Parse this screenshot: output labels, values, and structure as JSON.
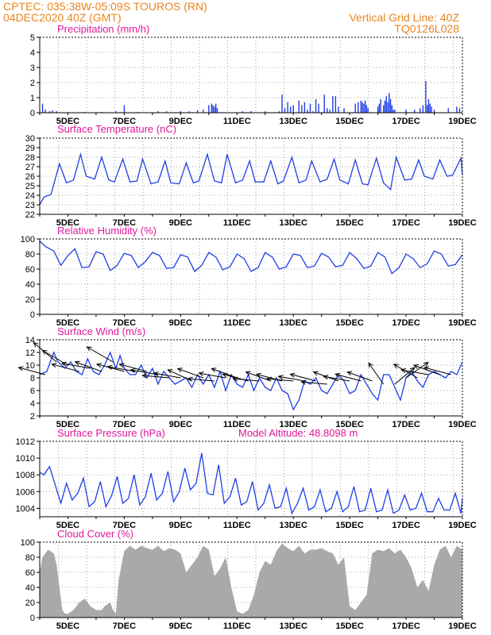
{
  "header": {
    "line1": "CPTEC:   035:38W-05:09S   TOUROS (RN)",
    "line2": "04DEC2020 40Z (GMT)",
    "right1": "Vertical Grid Line: 40Z",
    "right2": "TQ0126L028"
  },
  "colors": {
    "header": "#e8851f",
    "titles": "#e0189a",
    "line": "#1f3fe6",
    "cloud": "#a9a9a9",
    "wind_arrow": "#000000"
  },
  "x_days": [
    "5DEC",
    "7DEC",
    "9DEC",
    "11DEC",
    "13DEC",
    "15DEC",
    "17DEC",
    "19DEC"
  ],
  "chart_data": [
    {
      "type": "bar",
      "title": "Precipitation (mm/h)",
      "ylim": [
        0,
        5
      ],
      "yticks": [
        "0",
        "1",
        "2",
        "3",
        "4",
        "5"
      ],
      "x_range_days": [
        4.0,
        19.0
      ],
      "x": [
        4.1,
        4.2,
        4.35,
        4.45,
        4.6,
        5.6,
        6.2,
        6.7,
        7.0,
        7.5,
        8.2,
        8.5,
        9.0,
        9.3,
        9.6,
        9.8,
        10.0,
        10.1,
        10.15,
        10.2,
        10.25,
        10.3,
        11.2,
        11.5,
        12.0,
        12.5,
        12.6,
        12.7,
        12.8,
        12.9,
        13.0,
        13.2,
        13.3,
        13.4,
        13.5,
        13.6,
        13.7,
        13.8,
        13.9,
        14.1,
        14.2,
        14.3,
        14.4,
        14.5,
        14.6,
        14.8,
        15.2,
        15.3,
        15.4,
        15.45,
        15.5,
        15.55,
        15.6,
        15.65,
        16.0,
        16.05,
        16.1,
        16.2,
        16.25,
        16.3,
        16.35,
        16.4,
        16.45,
        16.5,
        16.55,
        16.6,
        17.0,
        17.3,
        17.5,
        17.6,
        17.7,
        17.75,
        17.8,
        17.85,
        17.9,
        18.0,
        18.5,
        18.8,
        18.9
      ],
      "values": [
        0.6,
        0.2,
        0.1,
        0.15,
        0.1,
        0.05,
        0.05,
        0.1,
        0.5,
        0.05,
        0.1,
        0.1,
        0.1,
        0.1,
        0.15,
        0.2,
        0.5,
        0.6,
        0.5,
        0.4,
        0.6,
        0.3,
        0.1,
        0.1,
        0.1,
        0.1,
        1.2,
        0.3,
        0.7,
        0.4,
        0.5,
        0.8,
        0.5,
        0.7,
        0.2,
        0.6,
        0.1,
        0.9,
        0.6,
        1.2,
        0.3,
        0.2,
        1.1,
        1.1,
        0.4,
        0.3,
        0.6,
        0.7,
        0.8,
        0.7,
        0.6,
        0.8,
        0.5,
        0.3,
        0.4,
        0.6,
        0.9,
        0.5,
        0.8,
        1.1,
        0.7,
        1.3,
        0.9,
        0.5,
        0.2,
        0.2,
        0.2,
        0.2,
        0.3,
        0.5,
        2.1,
        0.5,
        0.9,
        0.6,
        0.4,
        0.2,
        0.3,
        0.4,
        0.3
      ]
    },
    {
      "type": "line",
      "title": "Surface Temperature (nC)",
      "ylim": [
        22,
        30
      ],
      "yticks": [
        "22",
        "23",
        "24",
        "25",
        "26",
        "27",
        "28",
        "29",
        "30"
      ],
      "x_range_days": [
        4.0,
        19.0
      ],
      "x": [
        4.0,
        4.15,
        4.4,
        4.7,
        4.95,
        5.2,
        5.45,
        5.65,
        5.95,
        6.2,
        6.45,
        6.65,
        6.95,
        7.2,
        7.45,
        7.65,
        7.95,
        8.2,
        8.45,
        8.65,
        8.95,
        9.2,
        9.45,
        9.65,
        9.95,
        10.2,
        10.45,
        10.65,
        10.95,
        11.2,
        11.45,
        11.65,
        11.95,
        12.2,
        12.45,
        12.65,
        12.95,
        13.2,
        13.45,
        13.65,
        13.95,
        14.2,
        14.45,
        14.65,
        14.95,
        15.2,
        15.45,
        15.65,
        15.95,
        16.2,
        16.45,
        16.65,
        16.95,
        17.2,
        17.45,
        17.65,
        17.95,
        18.2,
        18.45,
        18.65,
        18.95,
        19.0
      ],
      "values": [
        23.0,
        23.8,
        24.1,
        27.3,
        25.3,
        25.6,
        28.3,
        26.0,
        25.7,
        28.0,
        25.6,
        25.4,
        27.8,
        25.4,
        25.5,
        27.8,
        25.2,
        25.4,
        27.6,
        25.3,
        25.2,
        27.4,
        25.3,
        25.5,
        28.3,
        25.5,
        25.3,
        28.3,
        25.3,
        25.6,
        27.6,
        25.4,
        25.4,
        27.6,
        25.2,
        25.5,
        28.0,
        25.3,
        25.6,
        27.6,
        25.4,
        25.7,
        27.8,
        25.6,
        25.2,
        27.7,
        25.2,
        25.1,
        27.9,
        25.3,
        24.6,
        28.0,
        25.6,
        25.7,
        27.7,
        26.0,
        25.7,
        27.7,
        26.0,
        26.1,
        27.9,
        26.1
      ]
    },
    {
      "type": "line",
      "title": "Relative Humidity (%)",
      "ylim": [
        0,
        100
      ],
      "yticks": [
        "0",
        "20",
        "40",
        "60",
        "80",
        "100"
      ],
      "x_range_days": [
        4.0,
        19.0
      ],
      "x": [
        4.0,
        4.2,
        4.5,
        4.75,
        5.0,
        5.25,
        5.5,
        5.75,
        6.0,
        6.25,
        6.5,
        6.75,
        7.0,
        7.25,
        7.5,
        7.75,
        8.0,
        8.25,
        8.5,
        8.75,
        9.0,
        9.25,
        9.5,
        9.75,
        10.0,
        10.25,
        10.5,
        10.75,
        11.0,
        11.25,
        11.5,
        11.75,
        12.0,
        12.25,
        12.5,
        12.75,
        13.0,
        13.25,
        13.5,
        13.75,
        14.0,
        14.25,
        14.5,
        14.75,
        15.0,
        15.25,
        15.5,
        15.75,
        16.0,
        16.25,
        16.5,
        16.75,
        17.0,
        17.25,
        17.5,
        17.75,
        18.0,
        18.25,
        18.5,
        18.75,
        19.0
      ],
      "values": [
        97,
        90,
        84,
        65,
        78,
        87,
        62,
        63,
        83,
        80,
        58,
        65,
        81,
        78,
        62,
        70,
        82,
        78,
        61,
        62,
        79,
        76,
        57,
        65,
        82,
        76,
        59,
        63,
        80,
        74,
        57,
        62,
        82,
        76,
        60,
        63,
        80,
        78,
        62,
        64,
        81,
        76,
        63,
        65,
        82,
        74,
        61,
        64,
        82,
        76,
        54,
        62,
        80,
        74,
        62,
        67,
        84,
        80,
        64,
        66,
        79
      ]
    },
    {
      "type": "line",
      "title": "Surface Wind (m/s)",
      "ylim": [
        2,
        14
      ],
      "yticks": [
        "2",
        "4",
        "6",
        "8",
        "10",
        "12",
        "14"
      ],
      "x_range_days": [
        4.0,
        19.0
      ],
      "x": [
        4.0,
        4.25,
        4.5,
        4.65,
        4.9,
        5.1,
        5.3,
        5.5,
        5.7,
        5.9,
        6.1,
        6.3,
        6.5,
        6.7,
        6.85,
        7.0,
        7.2,
        7.4,
        7.6,
        7.8,
        8.0,
        8.2,
        8.4,
        8.6,
        8.8,
        9.0,
        9.2,
        9.4,
        9.6,
        9.8,
        10.0,
        10.2,
        10.4,
        10.6,
        10.8,
        11.0,
        11.2,
        11.4,
        11.6,
        11.8,
        12.0,
        12.2,
        12.4,
        12.6,
        12.8,
        13.0,
        13.2,
        13.4,
        13.6,
        13.8,
        14.0,
        14.2,
        14.4,
        14.6,
        14.8,
        15.0,
        15.2,
        15.4,
        15.6,
        15.8,
        16.0,
        16.2,
        16.4,
        16.6,
        16.8,
        17.0,
        17.2,
        17.4,
        17.6,
        17.8,
        18.0,
        18.2,
        18.4,
        18.6,
        18.8,
        19.0
      ],
      "values": [
        8.5,
        9.0,
        12.0,
        10.5,
        9.5,
        10.5,
        9.0,
        8.5,
        11.0,
        9.0,
        8.5,
        10.0,
        12.0,
        9.5,
        11.5,
        9.5,
        8.5,
        8.5,
        10.0,
        8.0,
        9.5,
        7.0,
        9.0,
        8.0,
        7.0,
        7.5,
        8.0,
        6.5,
        8.5,
        7.0,
        8.5,
        6.5,
        9.0,
        6.0,
        8.5,
        7.0,
        6.5,
        8.5,
        6.0,
        8.0,
        6.5,
        6.0,
        8.0,
        6.0,
        5.5,
        3.0,
        4.5,
        7.5,
        7.0,
        8.0,
        6.0,
        5.5,
        7.0,
        8.5,
        7.5,
        5.5,
        6.0,
        8.5,
        7.0,
        5.5,
        4.5,
        8.5,
        8.5,
        6.5,
        4.5,
        8.0,
        9.0,
        7.5,
        6.5,
        8.5,
        9.0,
        8.5,
        8.0,
        9.0,
        8.5,
        10.5
      ],
      "arrows_x": [
        4.2,
        4.6,
        5.0,
        5.4,
        5.8,
        6.2,
        6.6,
        7.0,
        7.4,
        7.8,
        8.2,
        8.6,
        9.0,
        9.4,
        9.8,
        10.2,
        10.6,
        11.0,
        11.4,
        11.8,
        12.2,
        12.6,
        13.0,
        13.4,
        13.8,
        14.2,
        14.6,
        15.0,
        15.4,
        15.8,
        16.2,
        16.6,
        17.0,
        17.4,
        17.8,
        18.2,
        18.6
      ],
      "arrows_speed": [
        8.5,
        10.5,
        10.0,
        9.0,
        9.5,
        9.0,
        10.5,
        9.0,
        9.0,
        9.0,
        8.5,
        8.0,
        8.0,
        7.5,
        8.0,
        7.5,
        8.0,
        8.0,
        7.5,
        7.5,
        7.5,
        7.5,
        7.5,
        7.5,
        7.5,
        7.0,
        7.5,
        7.5,
        7.5,
        7.5,
        7.0,
        7.0,
        8.0,
        8.0,
        8.5,
        8.5,
        8.5
      ],
      "arrows_dir_deg": [
        165,
        140,
        150,
        165,
        170,
        160,
        150,
        165,
        170,
        165,
        170,
        175,
        170,
        155,
        160,
        175,
        170,
        160,
        165,
        175,
        160,
        165,
        175,
        170,
        165,
        175,
        160,
        170,
        165,
        160,
        125,
        40,
        35,
        150,
        170,
        160,
        165
      ]
    },
    {
      "type": "line",
      "title": "Surface Pressure (hPa)",
      "annotation": "Model Altitude: 48.8098 m",
      "ylim": [
        1003,
        1012
      ],
      "yticks": [
        "1004",
        "1006",
        "1008",
        "1010",
        "1012"
      ],
      "x_range_days": [
        4.0,
        19.0
      ],
      "x": [
        4.0,
        4.15,
        4.35,
        4.55,
        4.75,
        4.95,
        5.15,
        5.35,
        5.55,
        5.75,
        5.95,
        6.15,
        6.35,
        6.55,
        6.75,
        6.95,
        7.15,
        7.35,
        7.55,
        7.75,
        7.95,
        8.15,
        8.35,
        8.55,
        8.75,
        8.95,
        9.15,
        9.35,
        9.55,
        9.75,
        9.95,
        10.15,
        10.35,
        10.55,
        10.75,
        10.95,
        11.15,
        11.35,
        11.55,
        11.75,
        11.95,
        12.15,
        12.35,
        12.55,
        12.75,
        12.95,
        13.15,
        13.35,
        13.55,
        13.75,
        13.95,
        14.15,
        14.35,
        14.55,
        14.75,
        14.95,
        15.15,
        15.35,
        15.55,
        15.75,
        15.95,
        16.15,
        16.35,
        16.55,
        16.75,
        16.95,
        17.15,
        17.35,
        17.55,
        17.75,
        17.95,
        18.15,
        18.35,
        18.55,
        18.75,
        18.95,
        19.0
      ],
      "values": [
        1008.3,
        1008.0,
        1009.0,
        1006.8,
        1004.6,
        1007.0,
        1005.0,
        1005.8,
        1007.6,
        1004.2,
        1004.8,
        1007.2,
        1004.2,
        1005.5,
        1007.8,
        1004.6,
        1005.2,
        1008.0,
        1004.4,
        1005.4,
        1008.2,
        1005.0,
        1005.8,
        1008.4,
        1004.8,
        1006.0,
        1008.8,
        1006.2,
        1007.0,
        1010.6,
        1005.8,
        1005.6,
        1009.2,
        1004.6,
        1005.4,
        1007.6,
        1004.4,
        1004.8,
        1007.2,
        1003.8,
        1004.6,
        1006.8,
        1004.0,
        1004.2,
        1006.4,
        1003.4,
        1004.6,
        1006.4,
        1003.8,
        1004.2,
        1006.2,
        1003.6,
        1004.0,
        1006.0,
        1003.6,
        1004.2,
        1006.6,
        1003.6,
        1003.8,
        1006.4,
        1003.6,
        1003.8,
        1006.2,
        1003.4,
        1003.8,
        1005.6,
        1003.8,
        1004.0,
        1005.8,
        1003.6,
        1003.6,
        1005.2,
        1003.8,
        1003.8,
        1005.8,
        1003.4,
        1005.2
      ]
    },
    {
      "type": "area",
      "title": "Cloud Cover (%)",
      "ylim": [
        0,
        100
      ],
      "yticks": [
        "0",
        "20",
        "40",
        "60",
        "80",
        "100"
      ],
      "x_range_days": [
        4.0,
        19.0
      ],
      "x": [
        4.0,
        4.1,
        4.3,
        4.5,
        4.6,
        4.7,
        4.8,
        4.9,
        5.0,
        5.2,
        5.4,
        5.6,
        5.8,
        6.0,
        6.2,
        6.3,
        6.5,
        6.6,
        6.7,
        6.8,
        7.0,
        7.2,
        7.4,
        7.6,
        7.8,
        8.0,
        8.2,
        8.4,
        8.6,
        8.8,
        9.0,
        9.2,
        9.4,
        9.6,
        9.8,
        10.0,
        10.2,
        10.4,
        10.6,
        10.8,
        11.0,
        11.2,
        11.4,
        11.6,
        11.8,
        12.0,
        12.2,
        12.4,
        12.6,
        12.8,
        13.0,
        13.2,
        13.4,
        13.6,
        13.8,
        14.0,
        14.2,
        14.4,
        14.6,
        14.8,
        15.0,
        15.2,
        15.4,
        15.6,
        15.8,
        16.0,
        16.2,
        16.4,
        16.6,
        16.8,
        17.0,
        17.2,
        17.4,
        17.6,
        17.8,
        18.0,
        18.2,
        18.4,
        18.6,
        18.8,
        19.0
      ],
      "values": [
        60,
        80,
        90,
        85,
        70,
        40,
        10,
        5,
        5,
        10,
        20,
        25,
        15,
        10,
        10,
        15,
        20,
        10,
        5,
        50,
        88,
        95,
        90,
        95,
        92,
        90,
        95,
        88,
        92,
        90,
        85,
        60,
        70,
        80,
        95,
        90,
        55,
        65,
        80,
        40,
        8,
        5,
        10,
        30,
        60,
        75,
        70,
        88,
        98,
        92,
        88,
        95,
        85,
        90,
        90,
        92,
        88,
        85,
        70,
        80,
        15,
        10,
        20,
        30,
        85,
        90,
        88,
        92,
        85,
        90,
        80,
        65,
        40,
        50,
        35,
        70,
        90,
        95,
        80,
        95,
        90
      ]
    }
  ]
}
